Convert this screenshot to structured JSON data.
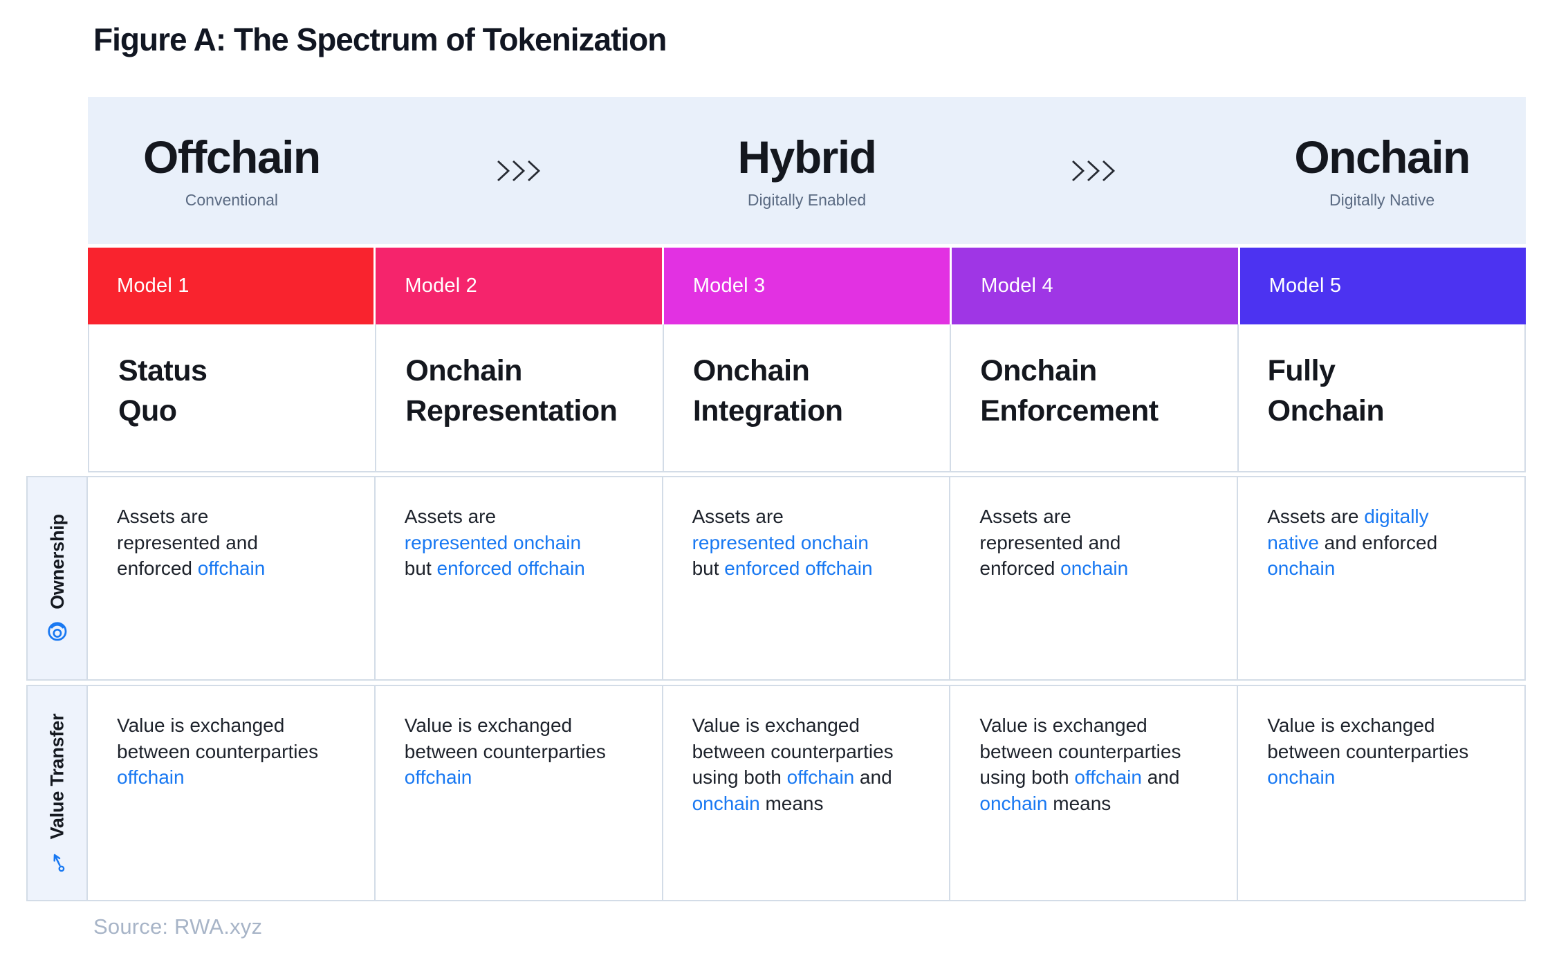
{
  "page": {
    "title": "Figure A: The Spectrum of Tokenization",
    "source": "Source: RWA.xyz"
  },
  "colors": {
    "band_bg": "#e9f0fa",
    "sidebar_bg": "#eef3fc",
    "link_blue": "#1878f2",
    "border": "#d3dce7",
    "chevron": "#272b33",
    "source_gray": "#a7b4c7"
  },
  "spectrum": {
    "stages": [
      {
        "name": "Offchain",
        "subtitle": "Conventional"
      },
      {
        "name": "Hybrid",
        "subtitle": "Digitally Enabled"
      },
      {
        "name": "Onchain",
        "subtitle": "Digitally Native"
      }
    ]
  },
  "models": [
    {
      "label": "Model 1",
      "color": "#f9232e",
      "title_lines": [
        "Status",
        "Quo"
      ]
    },
    {
      "label": "Model 2",
      "color": "#f5246c",
      "title_lines": [
        "Onchain",
        "Representation"
      ]
    },
    {
      "label": "Model 3",
      "color": "#e231e2",
      "title_lines": [
        "Onchain",
        "Integration"
      ]
    },
    {
      "label": "Model 4",
      "color": "#9f36e5",
      "title_lines": [
        "Onchain",
        "Enforcement"
      ]
    },
    {
      "label": "Model 5",
      "color": "#4c33f1",
      "title_lines": [
        "Fully",
        "Onchain"
      ]
    }
  ],
  "rows": [
    {
      "label": "Ownership",
      "icon": "ownership-icon",
      "cells": [
        [
          {
            "t": "Assets are"
          },
          {
            "br": true
          },
          {
            "t": "represented and"
          },
          {
            "br": true
          },
          {
            "t": "enforced "
          },
          {
            "t": "offchain",
            "blue": true
          }
        ],
        [
          {
            "t": "Assets are"
          },
          {
            "br": true
          },
          {
            "t": "represented onchain",
            "blue": true
          },
          {
            "br": true
          },
          {
            "t": "but "
          },
          {
            "t": "enforced offchain",
            "blue": true
          }
        ],
        [
          {
            "t": "Assets are"
          },
          {
            "br": true
          },
          {
            "t": "represented onchain",
            "blue": true
          },
          {
            "br": true
          },
          {
            "t": "but "
          },
          {
            "t": "enforced offchain",
            "blue": true
          }
        ],
        [
          {
            "t": "Assets are"
          },
          {
            "br": true
          },
          {
            "t": "represented and"
          },
          {
            "br": true
          },
          {
            "t": "enforced "
          },
          {
            "t": "onchain",
            "blue": true
          }
        ],
        [
          {
            "t": "Assets are "
          },
          {
            "t": "digitally",
            "blue": true
          },
          {
            "br": true
          },
          {
            "t": "native",
            "blue": true
          },
          {
            "t": " and enforced"
          },
          {
            "br": true
          },
          {
            "t": "onchain",
            "blue": true
          }
        ]
      ]
    },
    {
      "label": "Value Transfer",
      "icon": "transfer-arrow-icon",
      "cells": [
        [
          {
            "t": "Value is exchanged"
          },
          {
            "br": true
          },
          {
            "t": "between counterparties"
          },
          {
            "br": true
          },
          {
            "t": "offchain",
            "blue": true
          }
        ],
        [
          {
            "t": "Value is exchanged"
          },
          {
            "br": true
          },
          {
            "t": "between counterparties"
          },
          {
            "br": true
          },
          {
            "t": "offchain",
            "blue": true
          }
        ],
        [
          {
            "t": "Value is exchanged"
          },
          {
            "br": true
          },
          {
            "t": "between counterparties"
          },
          {
            "br": true
          },
          {
            "t": "using both "
          },
          {
            "t": "offchain",
            "blue": true
          },
          {
            "t": " and"
          },
          {
            "br": true
          },
          {
            "t": "onchain",
            "blue": true
          },
          {
            "t": " means"
          }
        ],
        [
          {
            "t": "Value is exchanged"
          },
          {
            "br": true
          },
          {
            "t": "between counterparties"
          },
          {
            "br": true
          },
          {
            "t": "using both "
          },
          {
            "t": "offchain",
            "blue": true
          },
          {
            "t": " and"
          },
          {
            "br": true
          },
          {
            "t": "onchain",
            "blue": true
          },
          {
            "t": " means"
          }
        ],
        [
          {
            "t": "Value is exchanged"
          },
          {
            "br": true
          },
          {
            "t": "between counterparties"
          },
          {
            "br": true
          },
          {
            "t": "onchain",
            "blue": true
          }
        ]
      ]
    }
  ]
}
